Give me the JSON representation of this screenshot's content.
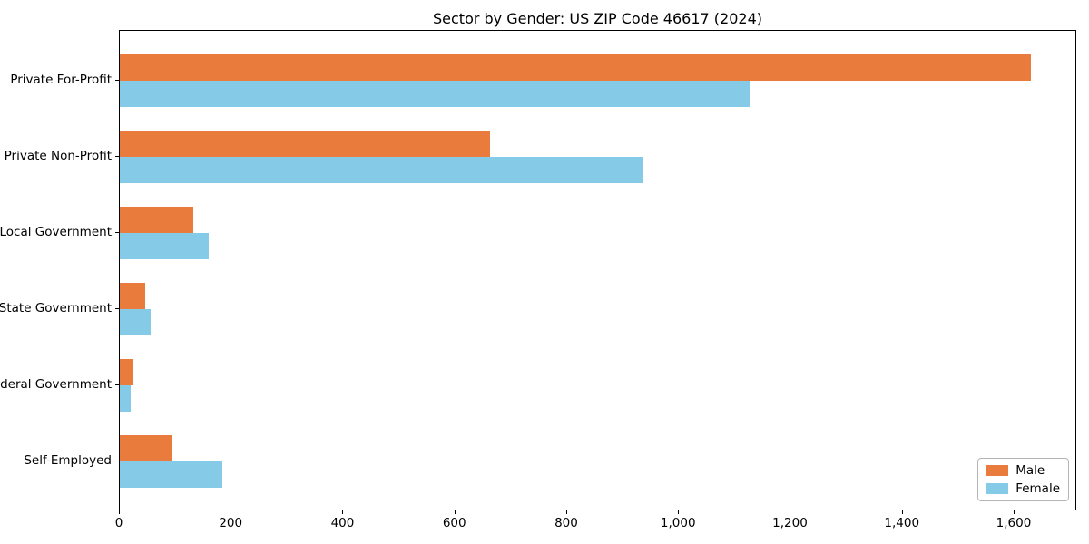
{
  "title": "Sector by Gender: US ZIP Code 46617 (2024)",
  "colors": {
    "male": "#E97C3C",
    "female": "#85CBE8",
    "axis": "#000000",
    "legend_border": "#B5B5B5",
    "background": "#FFFFFF"
  },
  "legend": {
    "position": "lower right",
    "items": [
      {
        "label": "Male",
        "color": "#E97C3C"
      },
      {
        "label": "Female",
        "color": "#85CBE8"
      }
    ]
  },
  "chart_data": {
    "type": "bar",
    "orientation": "horizontal",
    "title": "Sector by Gender: US ZIP Code 46617 (2024)",
    "xlabel": "",
    "ylabel": "",
    "categories": [
      "Private For-Profit",
      "Private Non-Profit",
      "Local Government",
      "State Government",
      "Federal Government",
      "Self-Employed"
    ],
    "series": [
      {
        "name": "Male",
        "color": "#E97C3C",
        "values": [
          1632,
          664,
          132,
          46,
          25,
          93
        ]
      },
      {
        "name": "Female",
        "color": "#85CBE8",
        "values": [
          1128,
          936,
          159,
          56,
          19,
          184
        ]
      }
    ],
    "xlim": [
      0,
      1712
    ],
    "xticks": [
      0,
      200,
      400,
      600,
      800,
      1000,
      1200,
      1400,
      1600
    ],
    "xtick_labels": [
      "0",
      "200",
      "400",
      "600",
      "800",
      "1,000",
      "1,200",
      "1,400",
      "1,600"
    ],
    "grid": false,
    "legend_position": "lower right"
  }
}
